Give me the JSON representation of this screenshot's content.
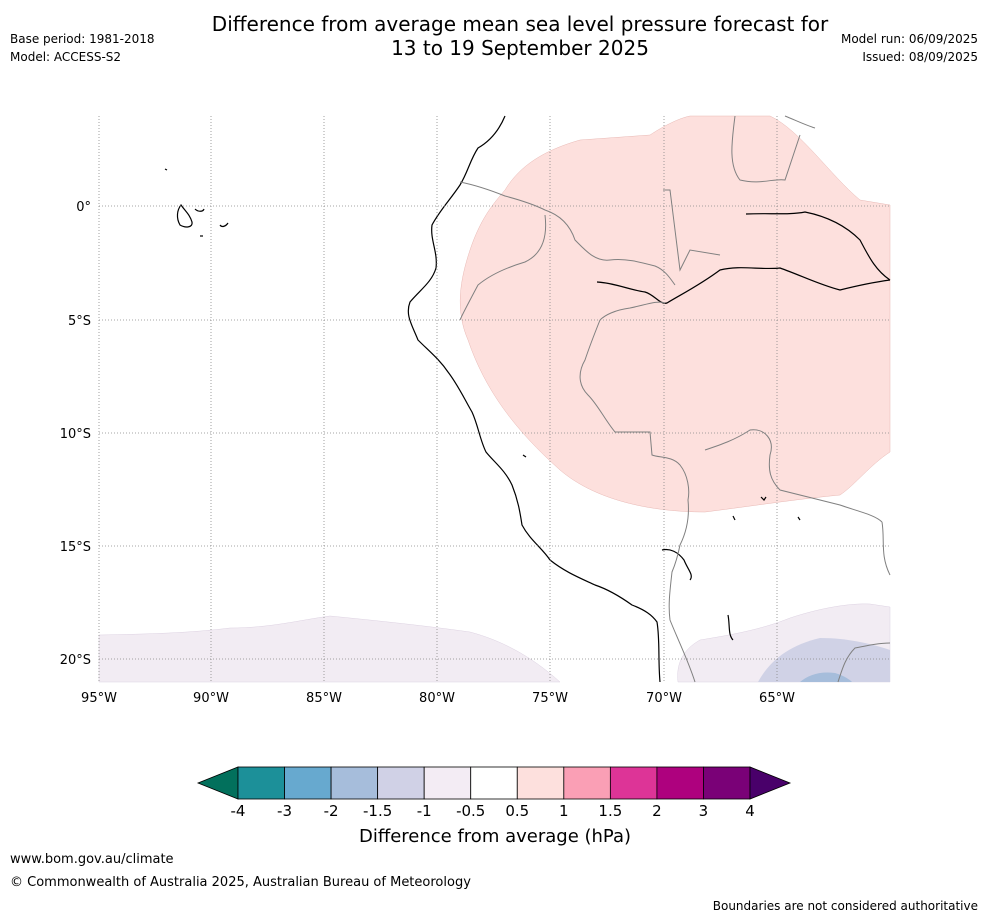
{
  "title": {
    "line1": "Difference from average mean sea level pressure forecast for",
    "line2": "13 to 19 September 2025"
  },
  "meta_left": {
    "base_period": "Base period: 1981-2018",
    "model": "Model: ACCESS-S2"
  },
  "meta_right": {
    "model_run": "Model run: 06/09/2025",
    "issued": "Issued: 08/09/2025"
  },
  "map": {
    "lat_labels": [
      "0°",
      "5°S",
      "10°S",
      "15°S",
      "20°S"
    ],
    "lon_labels": [
      "95°W",
      "90°W",
      "85°W",
      "80°W",
      "75°W",
      "70°W",
      "65°W"
    ],
    "colors": {
      "positive_0_5_to_1": "#fde0dd",
      "negative_0_5_to_1": "#f2ecf3",
      "negative_1_to_1_5": "#d0d2e6",
      "negative_1_5_to_2": "#a6bddb",
      "coastline": "#000000",
      "borders": "#808080"
    }
  },
  "colorbar": {
    "tick_labels": [
      "-4",
      "-3",
      "-2",
      "-1.5",
      "-1",
      "-0.5",
      "0.5",
      "1",
      "1.5",
      "2",
      "3",
      "4"
    ],
    "colors": [
      "#02705c",
      "#1c9099",
      "#67a9cf",
      "#a6bddb",
      "#d0d1e6",
      "#f3ecf4",
      "#ffffff",
      "#fde0dd",
      "#fa9fb5",
      "#dd3497",
      "#ae017e",
      "#7a0177",
      "#49006a"
    ],
    "label": "Difference from average (hPa)"
  },
  "footer": {
    "url": "www.bom.gov.au/climate",
    "copyright": "© Commonwealth of Australia 2025, Australian Bureau of Meteorology",
    "note": "Boundaries are not considered authoritative"
  }
}
